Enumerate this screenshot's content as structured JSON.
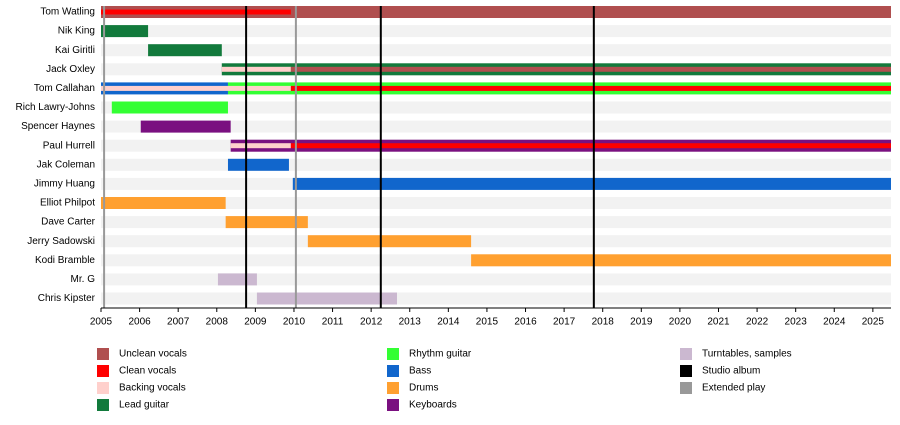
{
  "chart_data": {
    "type": "timeline",
    "xlim": [
      2005,
      2025.47
    ],
    "xticks": [
      2005,
      2006,
      2007,
      2008,
      2009,
      2010,
      2011,
      2012,
      2013,
      2014,
      2015,
      2016,
      2017,
      2018,
      2019,
      2020,
      2021,
      2022,
      2023,
      2024,
      2025
    ],
    "roles": [
      {
        "name": "Unclean vocals",
        "color": "#b04f4f"
      },
      {
        "name": "Clean vocals",
        "color": "#ff0000"
      },
      {
        "name": "Backing vocals",
        "color": "#ffd0cc"
      },
      {
        "name": "Lead guitar",
        "color": "#127a3c"
      },
      {
        "name": "Rhythm guitar",
        "color": "#33ff33"
      },
      {
        "name": "Bass",
        "color": "#1166cc"
      },
      {
        "name": "Drums",
        "color": "#ffa030"
      },
      {
        "name": "Keyboards",
        "color": "#7a1080"
      },
      {
        "name": "Turntables, samples",
        "color": "#cbb8d0"
      }
    ],
    "releases": [
      {
        "name": "Studio album",
        "color": "#000000",
        "dates": [
          2008.76,
          2012.25,
          2017.77
        ]
      },
      {
        "name": "Extended play",
        "color": "#999999",
        "dates": [
          2005.08,
          2010.05
        ]
      }
    ],
    "members": [
      {
        "name": "Tom Watling",
        "spans": [
          {
            "role": "Unclean vocals",
            "start": 2005,
            "end": 2025.47
          }
        ],
        "stripes": [
          {
            "role": "Clean vocals",
            "start": 2005,
            "end": 2009.92
          }
        ]
      },
      {
        "name": "Nik King",
        "spans": [
          {
            "role": "Lead guitar",
            "start": 2005,
            "end": 2006.22
          }
        ],
        "stripes": []
      },
      {
        "name": "Kai Giritli",
        "spans": [
          {
            "role": "Lead guitar",
            "start": 2006.22,
            "end": 2008.13
          }
        ],
        "stripes": []
      },
      {
        "name": "Jack Oxley",
        "spans": [
          {
            "role": "Lead guitar",
            "start": 2008.13,
            "end": 2025.47
          }
        ],
        "stripes": [
          {
            "role": "Backing vocals",
            "start": 2008.13,
            "end": 2009.92
          },
          {
            "role": "Unclean vocals",
            "start": 2009.92,
            "end": 2025.47
          }
        ]
      },
      {
        "name": "Tom Callahan",
        "spans": [
          {
            "role": "Bass",
            "start": 2005,
            "end": 2008.29
          },
          {
            "role": "Rhythm guitar",
            "start": 2008.29,
            "end": 2025.47
          }
        ],
        "stripes": [
          {
            "role": "Backing vocals",
            "start": 2005,
            "end": 2009.92
          },
          {
            "role": "Clean vocals",
            "start": 2009.92,
            "end": 2025.47
          }
        ]
      },
      {
        "name": "Rich Lawry-Johns",
        "spans": [
          {
            "role": "Rhythm guitar",
            "start": 2005.28,
            "end": 2008.29
          }
        ],
        "stripes": []
      },
      {
        "name": "Spencer Haynes",
        "spans": [
          {
            "role": "Keyboards",
            "start": 2006.03,
            "end": 2008.36
          }
        ],
        "stripes": []
      },
      {
        "name": "Paul Hurrell",
        "spans": [
          {
            "role": "Keyboards",
            "start": 2008.36,
            "end": 2025.47
          }
        ],
        "stripes": [
          {
            "role": "Backing vocals",
            "start": 2008.36,
            "end": 2009.92
          },
          {
            "role": "Clean vocals",
            "start": 2009.92,
            "end": 2025.47
          }
        ]
      },
      {
        "name": "Jak Coleman",
        "spans": [
          {
            "role": "Bass",
            "start": 2008.29,
            "end": 2009.87
          }
        ],
        "stripes": []
      },
      {
        "name": "Jimmy Huang",
        "spans": [
          {
            "role": "Bass",
            "start": 2009.97,
            "end": 2025.47
          }
        ],
        "stripes": []
      },
      {
        "name": "Elliot Philpot",
        "spans": [
          {
            "role": "Drums",
            "start": 2005,
            "end": 2008.23
          }
        ],
        "stripes": []
      },
      {
        "name": "Dave Carter",
        "spans": [
          {
            "role": "Drums",
            "start": 2008.23,
            "end": 2010.36
          }
        ],
        "stripes": []
      },
      {
        "name": "Jerry Sadowski",
        "spans": [
          {
            "role": "Drums",
            "start": 2010.36,
            "end": 2014.59
          }
        ],
        "stripes": []
      },
      {
        "name": "Kodi Bramble",
        "spans": [
          {
            "role": "Drums",
            "start": 2014.59,
            "end": 2025.47
          }
        ],
        "stripes": []
      },
      {
        "name": "Mr. G",
        "spans": [
          {
            "role": "Turntables, samples",
            "start": 2008.03,
            "end": 2009.04
          }
        ],
        "stripes": []
      },
      {
        "name": "Chris Kipster",
        "spans": [
          {
            "role": "Turntables, samples",
            "start": 2009.04,
            "end": 2012.67
          }
        ],
        "stripes": []
      }
    ]
  }
}
